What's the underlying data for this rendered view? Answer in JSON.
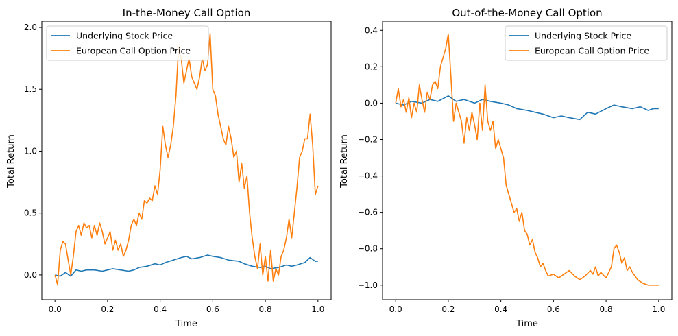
{
  "chart_data": [
    {
      "type": "line",
      "title": "In-the-Money Call Option",
      "xlabel": "Time",
      "ylabel": "Total Return",
      "xlim": [
        -0.05,
        1.05
      ],
      "ylim": [
        -0.2,
        2.05
      ],
      "xticks": [
        0.0,
        0.2,
        0.4,
        0.6,
        0.8,
        1.0
      ],
      "xtick_labels": [
        "0.0",
        "0.2",
        "0.4",
        "0.6",
        "0.8",
        "1.0"
      ],
      "yticks": [
        0.0,
        0.5,
        1.0,
        1.5,
        2.0
      ],
      "ytick_labels": [
        "0.0",
        "0.5",
        "1.0",
        "1.5",
        "2.0"
      ],
      "grid": false,
      "legend_position": "upper left",
      "series": [
        {
          "name": "Underlying Stock Price",
          "color": "#1f77b4",
          "points": [
            [
              0.0,
              0.0
            ],
            [
              0.02,
              -0.01
            ],
            [
              0.04,
              0.02
            ],
            [
              0.06,
              -0.01
            ],
            [
              0.08,
              0.04
            ],
            [
              0.1,
              0.03
            ],
            [
              0.12,
              0.04
            ],
            [
              0.15,
              0.04
            ],
            [
              0.18,
              0.03
            ],
            [
              0.2,
              0.04
            ],
            [
              0.22,
              0.05
            ],
            [
              0.25,
              0.04
            ],
            [
              0.28,
              0.03
            ],
            [
              0.3,
              0.04
            ],
            [
              0.32,
              0.06
            ],
            [
              0.35,
              0.07
            ],
            [
              0.38,
              0.09
            ],
            [
              0.4,
              0.08
            ],
            [
              0.42,
              0.1
            ],
            [
              0.45,
              0.12
            ],
            [
              0.48,
              0.14
            ],
            [
              0.5,
              0.15
            ],
            [
              0.52,
              0.13
            ],
            [
              0.55,
              0.14
            ],
            [
              0.58,
              0.16
            ],
            [
              0.6,
              0.15
            ],
            [
              0.63,
              0.14
            ],
            [
              0.66,
              0.12
            ],
            [
              0.7,
              0.11
            ],
            [
              0.72,
              0.09
            ],
            [
              0.75,
              0.07
            ],
            [
              0.78,
              0.06
            ],
            [
              0.8,
              0.07
            ],
            [
              0.82,
              0.05
            ],
            [
              0.85,
              0.06
            ],
            [
              0.88,
              0.08
            ],
            [
              0.9,
              0.07
            ],
            [
              0.92,
              0.08
            ],
            [
              0.95,
              0.1
            ],
            [
              0.97,
              0.14
            ],
            [
              0.99,
              0.11
            ],
            [
              1.0,
              0.11
            ]
          ]
        },
        {
          "name": "European Call Option Price",
          "color": "#ff7f0e",
          "points": [
            [
              0.0,
              0.0
            ],
            [
              0.01,
              -0.08
            ],
            [
              0.02,
              0.2
            ],
            [
              0.03,
              0.27
            ],
            [
              0.04,
              0.25
            ],
            [
              0.05,
              0.12
            ],
            [
              0.06,
              0.0
            ],
            [
              0.07,
              0.15
            ],
            [
              0.08,
              0.35
            ],
            [
              0.09,
              0.4
            ],
            [
              0.1,
              0.32
            ],
            [
              0.11,
              0.42
            ],
            [
              0.12,
              0.38
            ],
            [
              0.13,
              0.4
            ],
            [
              0.14,
              0.3
            ],
            [
              0.15,
              0.4
            ],
            [
              0.16,
              0.32
            ],
            [
              0.17,
              0.42
            ],
            [
              0.18,
              0.35
            ],
            [
              0.19,
              0.25
            ],
            [
              0.2,
              0.3
            ],
            [
              0.21,
              0.35
            ],
            [
              0.22,
              0.2
            ],
            [
              0.23,
              0.28
            ],
            [
              0.24,
              0.2
            ],
            [
              0.25,
              0.25
            ],
            [
              0.26,
              0.15
            ],
            [
              0.27,
              0.2
            ],
            [
              0.28,
              0.28
            ],
            [
              0.29,
              0.4
            ],
            [
              0.3,
              0.45
            ],
            [
              0.31,
              0.4
            ],
            [
              0.32,
              0.5
            ],
            [
              0.33,
              0.45
            ],
            [
              0.34,
              0.6
            ],
            [
              0.35,
              0.58
            ],
            [
              0.36,
              0.62
            ],
            [
              0.37,
              0.6
            ],
            [
              0.38,
              0.72
            ],
            [
              0.39,
              0.65
            ],
            [
              0.4,
              0.85
            ],
            [
              0.41,
              1.2
            ],
            [
              0.42,
              1.05
            ],
            [
              0.43,
              0.95
            ],
            [
              0.44,
              1.05
            ],
            [
              0.45,
              1.2
            ],
            [
              0.46,
              1.45
            ],
            [
              0.47,
              1.85
            ],
            [
              0.48,
              1.75
            ],
            [
              0.49,
              1.55
            ],
            [
              0.5,
              1.65
            ],
            [
              0.51,
              1.75
            ],
            [
              0.52,
              1.6
            ],
            [
              0.53,
              1.55
            ],
            [
              0.54,
              1.5
            ],
            [
              0.55,
              1.6
            ],
            [
              0.56,
              1.75
            ],
            [
              0.57,
              1.65
            ],
            [
              0.58,
              1.7
            ],
            [
              0.59,
              1.95
            ],
            [
              0.6,
              1.5
            ],
            [
              0.61,
              1.45
            ],
            [
              0.62,
              1.3
            ],
            [
              0.63,
              1.2
            ],
            [
              0.64,
              1.1
            ],
            [
              0.65,
              1.05
            ],
            [
              0.66,
              1.2
            ],
            [
              0.67,
              1.1
            ],
            [
              0.68,
              0.95
            ],
            [
              0.69,
              1.0
            ],
            [
              0.7,
              0.75
            ],
            [
              0.71,
              0.9
            ],
            [
              0.72,
              0.7
            ],
            [
              0.73,
              0.8
            ],
            [
              0.74,
              0.5
            ],
            [
              0.75,
              0.3
            ],
            [
              0.76,
              0.15
            ],
            [
              0.77,
              0.05
            ],
            [
              0.78,
              0.25
            ],
            [
              0.79,
              0.0
            ],
            [
              0.8,
              0.15
            ],
            [
              0.81,
              -0.05
            ],
            [
              0.82,
              0.2
            ],
            [
              0.83,
              -0.05
            ],
            [
              0.84,
              0.05
            ],
            [
              0.85,
              0.0
            ],
            [
              0.86,
              0.15
            ],
            [
              0.87,
              0.2
            ],
            [
              0.88,
              0.3
            ],
            [
              0.89,
              0.45
            ],
            [
              0.9,
              0.3
            ],
            [
              0.91,
              0.5
            ],
            [
              0.92,
              0.7
            ],
            [
              0.93,
              0.95
            ],
            [
              0.94,
              1.0
            ],
            [
              0.95,
              1.1
            ],
            [
              0.96,
              1.1
            ],
            [
              0.97,
              1.3
            ],
            [
              0.98,
              1.05
            ],
            [
              0.99,
              0.65
            ],
            [
              1.0,
              0.72
            ]
          ]
        }
      ]
    },
    {
      "type": "line",
      "title": "Out-of-the-Money Call Option",
      "xlabel": "Time",
      "ylabel": "Total Return",
      "xlim": [
        -0.05,
        1.05
      ],
      "ylim": [
        -1.08,
        0.45
      ],
      "xticks": [
        0.0,
        0.2,
        0.4,
        0.6,
        0.8,
        1.0
      ],
      "xtick_labels": [
        "0.0",
        "0.2",
        "0.4",
        "0.6",
        "0.8",
        "1.0"
      ],
      "yticks": [
        -1.0,
        -0.8,
        -0.6,
        -0.4,
        -0.2,
        0.0,
        0.2,
        0.4
      ],
      "ytick_labels": [
        "−1.0",
        "−0.8",
        "−0.6",
        "−0.4",
        "−0.2",
        "0.0",
        "0.2",
        "0.4"
      ],
      "grid": false,
      "legend_position": "upper right",
      "series": [
        {
          "name": "Underlying Stock Price",
          "color": "#1f77b4",
          "points": [
            [
              0.0,
              0.0
            ],
            [
              0.03,
              -0.01
            ],
            [
              0.06,
              0.01
            ],
            [
              0.1,
              0.0
            ],
            [
              0.13,
              0.02
            ],
            [
              0.16,
              0.01
            ],
            [
              0.2,
              0.04
            ],
            [
              0.23,
              0.01
            ],
            [
              0.26,
              0.02
            ],
            [
              0.3,
              0.0
            ],
            [
              0.33,
              0.02
            ],
            [
              0.36,
              0.01
            ],
            [
              0.4,
              0.0
            ],
            [
              0.43,
              -0.01
            ],
            [
              0.46,
              -0.03
            ],
            [
              0.5,
              -0.04
            ],
            [
              0.53,
              -0.05
            ],
            [
              0.56,
              -0.06
            ],
            [
              0.6,
              -0.08
            ],
            [
              0.63,
              -0.07
            ],
            [
              0.66,
              -0.08
            ],
            [
              0.7,
              -0.09
            ],
            [
              0.73,
              -0.05
            ],
            [
              0.76,
              -0.06
            ],
            [
              0.8,
              -0.03
            ],
            [
              0.83,
              -0.01
            ],
            [
              0.86,
              -0.02
            ],
            [
              0.9,
              -0.03
            ],
            [
              0.93,
              -0.02
            ],
            [
              0.96,
              -0.04
            ],
            [
              0.98,
              -0.03
            ],
            [
              1.0,
              -0.03
            ]
          ]
        },
        {
          "name": "European Call Option Price",
          "color": "#ff7f0e",
          "points": [
            [
              0.0,
              0.0
            ],
            [
              0.01,
              0.08
            ],
            [
              0.02,
              -0.02
            ],
            [
              0.03,
              0.02
            ],
            [
              0.04,
              -0.05
            ],
            [
              0.05,
              0.03
            ],
            [
              0.06,
              -0.08
            ],
            [
              0.07,
              0.0
            ],
            [
              0.08,
              -0.05
            ],
            [
              0.09,
              0.1
            ],
            [
              0.1,
              0.02
            ],
            [
              0.11,
              -0.05
            ],
            [
              0.12,
              0.06
            ],
            [
              0.13,
              0.02
            ],
            [
              0.14,
              0.1
            ],
            [
              0.15,
              0.12
            ],
            [
              0.16,
              0.08
            ],
            [
              0.17,
              0.2
            ],
            [
              0.18,
              0.25
            ],
            [
              0.19,
              0.3
            ],
            [
              0.2,
              0.38
            ],
            [
              0.21,
              0.15
            ],
            [
              0.22,
              -0.1
            ],
            [
              0.23,
              0.0
            ],
            [
              0.24,
              -0.05
            ],
            [
              0.25,
              -0.1
            ],
            [
              0.26,
              -0.22
            ],
            [
              0.27,
              -0.08
            ],
            [
              0.28,
              -0.15
            ],
            [
              0.29,
              -0.05
            ],
            [
              0.3,
              -0.12
            ],
            [
              0.31,
              -0.2
            ],
            [
              0.32,
              0.0
            ],
            [
              0.33,
              -0.15
            ],
            [
              0.34,
              0.1
            ],
            [
              0.35,
              -0.1
            ],
            [
              0.36,
              -0.15
            ],
            [
              0.37,
              -0.1
            ],
            [
              0.38,
              -0.25
            ],
            [
              0.39,
              -0.2
            ],
            [
              0.4,
              -0.25
            ],
            [
              0.41,
              -0.3
            ],
            [
              0.42,
              -0.45
            ],
            [
              0.43,
              -0.5
            ],
            [
              0.44,
              -0.55
            ],
            [
              0.45,
              -0.6
            ],
            [
              0.46,
              -0.58
            ],
            [
              0.47,
              -0.65
            ],
            [
              0.48,
              -0.6
            ],
            [
              0.49,
              -0.7
            ],
            [
              0.5,
              -0.72
            ],
            [
              0.51,
              -0.78
            ],
            [
              0.52,
              -0.75
            ],
            [
              0.53,
              -0.82
            ],
            [
              0.54,
              -0.85
            ],
            [
              0.55,
              -0.9
            ],
            [
              0.56,
              -0.88
            ],
            [
              0.57,
              -0.92
            ],
            [
              0.58,
              -0.95
            ],
            [
              0.6,
              -0.94
            ],
            [
              0.62,
              -0.96
            ],
            [
              0.64,
              -0.94
            ],
            [
              0.66,
              -0.92
            ],
            [
              0.68,
              -0.95
            ],
            [
              0.7,
              -0.97
            ],
            [
              0.72,
              -0.95
            ],
            [
              0.74,
              -0.92
            ],
            [
              0.75,
              -0.94
            ],
            [
              0.76,
              -0.9
            ],
            [
              0.77,
              -0.95
            ],
            [
              0.78,
              -0.93
            ],
            [
              0.8,
              -0.96
            ],
            [
              0.82,
              -0.9
            ],
            [
              0.83,
              -0.8
            ],
            [
              0.84,
              -0.78
            ],
            [
              0.85,
              -0.82
            ],
            [
              0.86,
              -0.88
            ],
            [
              0.87,
              -0.85
            ],
            [
              0.88,
              -0.92
            ],
            [
              0.89,
              -0.9
            ],
            [
              0.9,
              -0.93
            ],
            [
              0.92,
              -0.97
            ],
            [
              0.94,
              -0.99
            ],
            [
              0.96,
              -1.0
            ],
            [
              0.98,
              -1.0
            ],
            [
              1.0,
              -1.0
            ]
          ]
        }
      ]
    }
  ]
}
